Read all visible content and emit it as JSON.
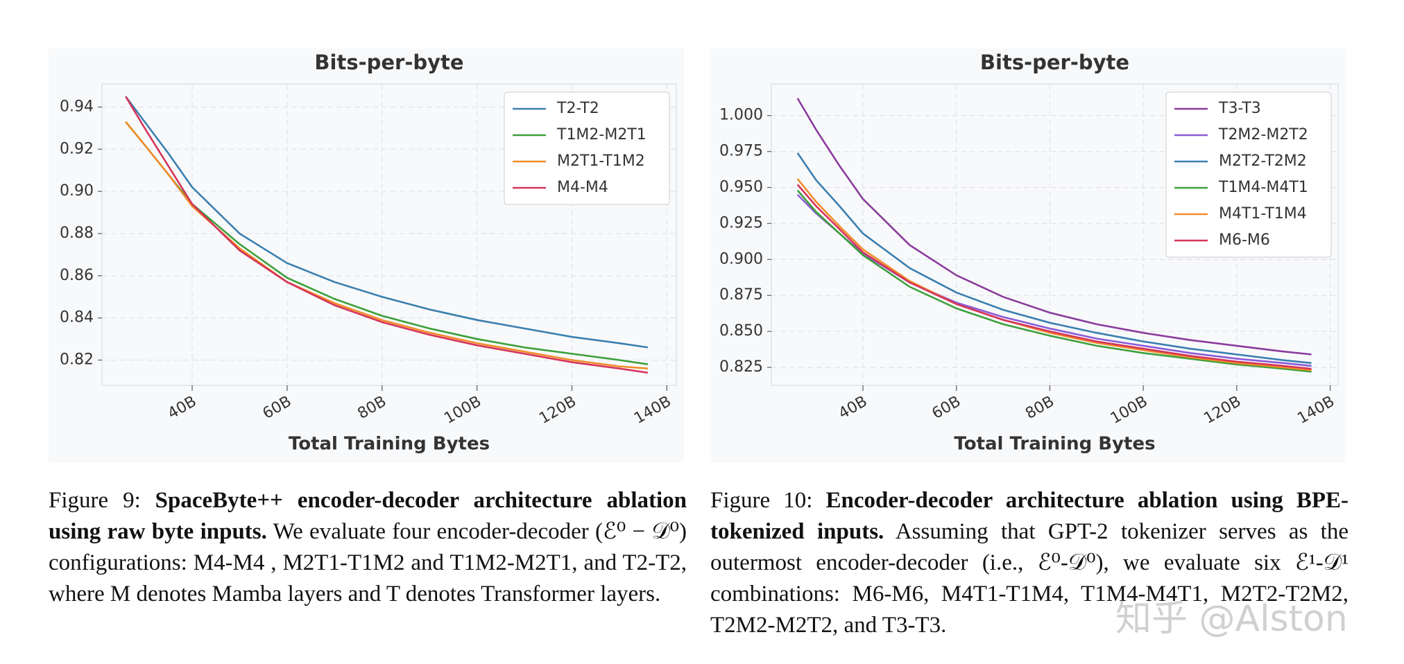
{
  "chart_data": [
    {
      "type": "line",
      "title": "Bits-per-byte",
      "xlabel": "Total Training Bytes",
      "x": [
        26,
        30,
        35,
        40,
        50,
        60,
        70,
        80,
        90,
        100,
        110,
        120,
        130,
        136
      ],
      "xlim": [
        21,
        142
      ],
      "ylim": [
        0.808,
        0.951
      ],
      "xticks": [
        {
          "value": 40,
          "label": "40B"
        },
        {
          "value": 60,
          "label": "60B"
        },
        {
          "value": 80,
          "label": "80B"
        },
        {
          "value": 100,
          "label": "100B"
        },
        {
          "value": 120,
          "label": "120B"
        },
        {
          "value": 140,
          "label": "140B"
        }
      ],
      "yticks": [
        {
          "value": 0.82,
          "label": "0.82"
        },
        {
          "value": 0.84,
          "label": "0.84"
        },
        {
          "value": 0.86,
          "label": "0.86"
        },
        {
          "value": 0.88,
          "label": "0.88"
        },
        {
          "value": 0.9,
          "label": "0.90"
        },
        {
          "value": 0.92,
          "label": "0.92"
        },
        {
          "value": 0.94,
          "label": "0.94"
        }
      ],
      "grid": true,
      "legend": "upper right",
      "series": [
        {
          "name": "T2-T2",
          "color": "#3a7fb0",
          "values": [
            0.945,
            0.933,
            0.918,
            0.902,
            0.88,
            0.866,
            0.857,
            0.85,
            0.844,
            0.839,
            0.835,
            0.831,
            0.828,
            0.826
          ]
        },
        {
          "name": "T1M2-M2T1",
          "color": "#3ca03c",
          "values": [
            0.933,
            0.922,
            0.908,
            0.894,
            0.875,
            0.859,
            0.849,
            0.841,
            0.835,
            0.83,
            0.826,
            0.823,
            0.82,
            0.818
          ]
        },
        {
          "name": "M2T1-T1M2",
          "color": "#f08c28",
          "values": [
            0.933,
            0.922,
            0.908,
            0.893,
            0.873,
            0.857,
            0.847,
            0.839,
            0.833,
            0.828,
            0.824,
            0.82,
            0.817,
            0.816
          ]
        },
        {
          "name": "M4-M4",
          "color": "#d6335a",
          "values": [
            0.945,
            0.93,
            0.912,
            0.894,
            0.872,
            0.857,
            0.846,
            0.838,
            0.832,
            0.827,
            0.823,
            0.819,
            0.816,
            0.814
          ]
        }
      ]
    },
    {
      "type": "line",
      "title": "Bits-per-byte",
      "xlabel": "Total Training Bytes",
      "x": [
        26,
        30,
        35,
        40,
        50,
        60,
        70,
        80,
        90,
        100,
        110,
        120,
        130,
        136
      ],
      "xlim": [
        20.4,
        141.7
      ],
      "ylim": [
        0.8125,
        1.022
      ],
      "xticks": [
        {
          "value": 40,
          "label": "40B"
        },
        {
          "value": 60,
          "label": "60B"
        },
        {
          "value": 80,
          "label": "80B"
        },
        {
          "value": 100,
          "label": "100B"
        },
        {
          "value": 120,
          "label": "120B"
        },
        {
          "value": 140,
          "label": "140B"
        }
      ],
      "yticks": [
        {
          "value": 0.825,
          "label": "0.825"
        },
        {
          "value": 0.85,
          "label": "0.850"
        },
        {
          "value": 0.875,
          "label": "0.875"
        },
        {
          "value": 0.9,
          "label": "0.900"
        },
        {
          "value": 0.925,
          "label": "0.925"
        },
        {
          "value": 0.95,
          "label": "0.950"
        },
        {
          "value": 0.975,
          "label": "0.975"
        },
        {
          "value": 1.0,
          "label": "1.000"
        }
      ],
      "grid": true,
      "legend": "upper right",
      "series": [
        {
          "name": "T3-T3",
          "color": "#8a3c9c",
          "values": [
            1.012,
            0.99,
            0.965,
            0.942,
            0.91,
            0.889,
            0.874,
            0.863,
            0.855,
            0.849,
            0.844,
            0.84,
            0.836,
            0.834
          ]
        },
        {
          "name": "T2M2-M2T2",
          "color": "#8a5ad6",
          "values": [
            0.945,
            0.932,
            0.918,
            0.904,
            0.884,
            0.87,
            0.86,
            0.852,
            0.845,
            0.84,
            0.835,
            0.831,
            0.828,
            0.826
          ]
        },
        {
          "name": "M2T2-T2M2",
          "color": "#3a7fb0",
          "values": [
            0.974,
            0.955,
            0.937,
            0.918,
            0.894,
            0.877,
            0.865,
            0.856,
            0.849,
            0.843,
            0.838,
            0.834,
            0.83,
            0.828
          ]
        },
        {
          "name": "T1M4-M4T1",
          "color": "#3ca03c",
          "values": [
            0.948,
            0.933,
            0.918,
            0.903,
            0.881,
            0.866,
            0.855,
            0.847,
            0.84,
            0.835,
            0.831,
            0.827,
            0.824,
            0.822
          ]
        },
        {
          "name": "M4T1-T1M4",
          "color": "#f08c28",
          "values": [
            0.956,
            0.94,
            0.923,
            0.907,
            0.885,
            0.869,
            0.858,
            0.849,
            0.842,
            0.837,
            0.832,
            0.828,
            0.825,
            0.823
          ]
        },
        {
          "name": "M6-M6",
          "color": "#d6335a",
          "values": [
            0.952,
            0.937,
            0.921,
            0.905,
            0.884,
            0.869,
            0.858,
            0.85,
            0.843,
            0.838,
            0.833,
            0.829,
            0.826,
            0.824
          ]
        }
      ]
    }
  ],
  "captions": [
    {
      "label": "Figure 9:",
      "bold": "SpaceByte++ encoder-decoder architecture ablation using raw byte inputs.",
      "text": "We evaluate four encoder-decoder (ℰ⁰ − 𝒟⁰) configurations: M4-M4 , M2T1-T1M2 and T1M2-M2T1, and T2-T2, where M denotes Mamba layers and T denotes Transformer layers."
    },
    {
      "label": "Figure 10:",
      "bold": "Encoder-decoder architecture ablation using BPE-tokenized inputs.",
      "text": "Assuming that GPT-2 tokenizer serves as the outermost encoder-decoder (i.e., ℰ⁰-𝒟⁰), we evaluate six ℰ¹-𝒟¹ combinations: M6-M6, M4T1-T1M4, T1M4-M4T1, M2T2-T2M2, T2M2-M2T2, and T3-T3."
    }
  ],
  "watermark": "知乎 @Alston"
}
